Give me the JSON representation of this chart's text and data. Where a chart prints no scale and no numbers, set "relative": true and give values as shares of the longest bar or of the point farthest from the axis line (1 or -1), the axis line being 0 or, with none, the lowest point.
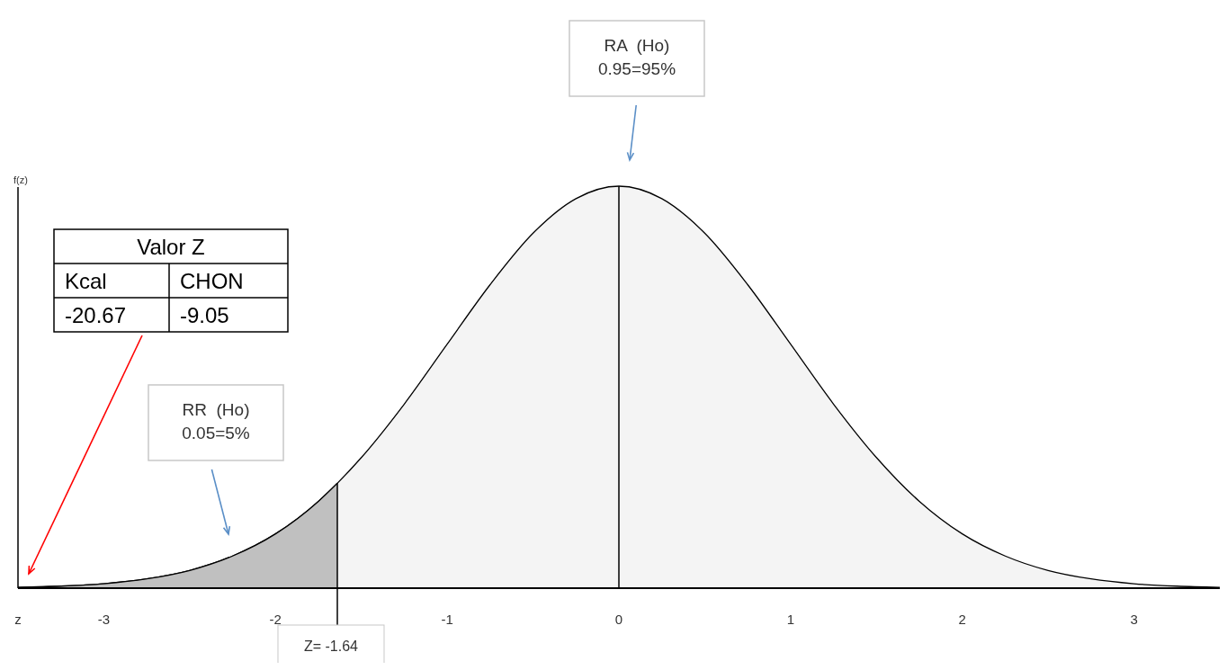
{
  "chart_data": {
    "type": "area",
    "relative": true,
    "xlabel": "z",
    "ylabel": "f(z)",
    "xlim": [
      -3.5,
      3.5
    ],
    "xticks": [
      -3,
      -2,
      -1,
      0,
      1,
      2,
      3
    ],
    "series": [
      {
        "color": "#f4f4f4",
        "x": [
          -3.5,
          -3.25,
          -3,
          -2.75,
          -2.5,
          -2.25,
          -2,
          -1.75,
          -1.64,
          -1.5,
          -1.25,
          -1,
          -0.75,
          -0.5,
          -0.25,
          0,
          0.25,
          0.5,
          0.75,
          1,
          1.25,
          1.5,
          1.75,
          2,
          2.25,
          2.5,
          2.75,
          3,
          3.25,
          3.5
        ],
        "values": [
          0.002,
          0.005,
          0.011,
          0.023,
          0.044,
          0.08,
          0.135,
          0.216,
          0.261,
          0.325,
          0.458,
          0.607,
          0.755,
          0.883,
          0.969,
          1,
          0.969,
          0.883,
          0.755,
          0.607,
          0.458,
          0.325,
          0.216,
          0.135,
          0.08,
          0.044,
          0.023,
          0.011,
          0.005,
          0.002
        ]
      },
      {
        "color": "#c0c0c0",
        "x": [
          -3.5,
          -3.25,
          -3,
          -2.75,
          -2.5,
          -2.25,
          -2,
          -1.75,
          -1.64
        ],
        "values": [
          0.002,
          0.005,
          0.011,
          0.023,
          0.044,
          0.08,
          0.135,
          0.216,
          0.261
        ]
      }
    ],
    "ref_lines": [
      {
        "axis": "x",
        "value": 0,
        "label": null
      },
      {
        "axis": "x",
        "value": -1.64,
        "label": "Z= -1.64"
      }
    ],
    "annotations": [
      "RA  (Ho)\n0.95=95%",
      "RR  (Ho)\n0.05=5%",
      "Valor Z",
      "Kcal",
      "CHON",
      "-20.67",
      "-9.05"
    ]
  }
}
